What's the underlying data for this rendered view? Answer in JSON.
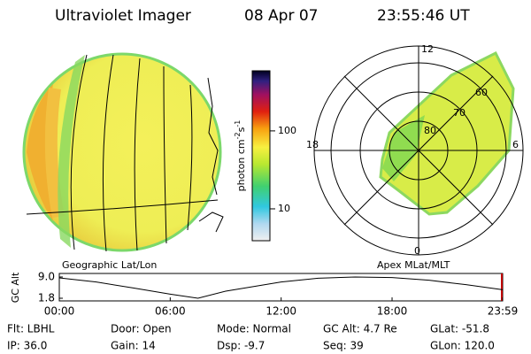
{
  "header": {
    "title": "Ultraviolet Imager",
    "date": "08 Apr 07",
    "time": "23:55:46 UT"
  },
  "colorbar": {
    "label": [
      "photon cm",
      "-2",
      "s",
      "-1"
    ],
    "range": [
      3.9,
      590
    ],
    "ticks": [
      10,
      100
    ],
    "log_scale": true
  },
  "panels": {
    "left": "Geographic Lat/Lon",
    "right": "Apex MLat/MLT"
  },
  "polar": {
    "mlt_labels": [
      "12",
      "18",
      "6",
      "0"
    ],
    "mlat_labels": [
      "60",
      "70",
      "80"
    ]
  },
  "altitude_plot": {
    "ylabel": "GC Alt",
    "x": [
      0,
      2,
      4,
      6,
      7.5,
      9,
      12,
      14,
      16,
      18,
      20,
      22,
      23.983
    ],
    "values": [
      8.7,
      7.3,
      5.3,
      3.2,
      1.8,
      4.2,
      7.3,
      8.6,
      9.0,
      8.8,
      7.9,
      6.4,
      4.7
    ],
    "xlim": [
      0,
      23.983
    ],
    "xticks": [
      {
        "value": 0,
        "label": "00:00"
      },
      {
        "value": 6,
        "label": "06:00"
      },
      {
        "value": 12,
        "label": "12:00"
      },
      {
        "value": 18,
        "label": "18:00"
      },
      {
        "value": 23.983,
        "label": "23:59"
      }
    ],
    "ylim": [
      1.8,
      9.0
    ],
    "yticks": [
      {
        "value": 9.0,
        "label": "9.0"
      },
      {
        "value": 1.8,
        "label": "1.8"
      }
    ]
  },
  "footer": [
    [
      "Flt: LBHL",
      "Door: Open",
      "Mode: Normal",
      "GC Alt: 4.7 Re",
      "GLat: -51.8"
    ],
    [
      "IP: 36.0",
      "Gain: 14",
      "Dsp:  -9.7",
      "Seq: 39",
      "GLon: 120.0"
    ]
  ]
}
